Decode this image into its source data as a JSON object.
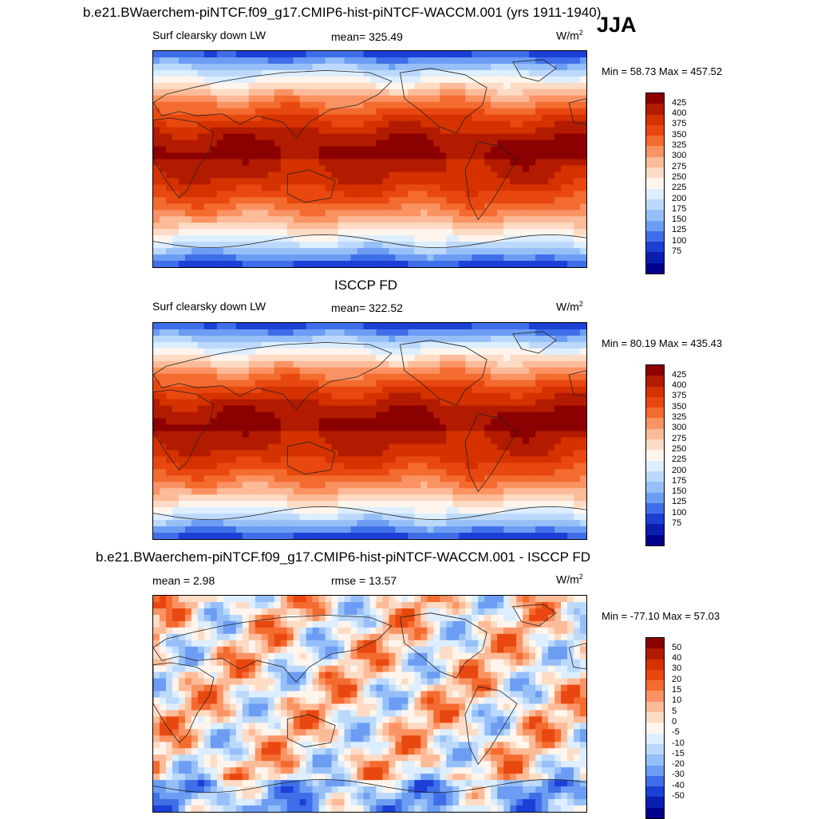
{
  "header": {
    "title": "b.e21.BWaerchem-piNTCF.f09_g17.CMIP6-hist-piNTCF-WACCM.001 (yrs 1911-1940)",
    "season": "JJA"
  },
  "units_base": "W/m",
  "units_exp": "2",
  "chart_data": [
    {
      "type": "heatmap",
      "title": "b.e21.BWaerchem-piNTCF.f09_g17.CMIP6-hist-piNTCF-WACCM.001 (yrs 1911-1940)",
      "variable": "Surf clearsky down LW",
      "stat_left": "Surf clearsky down LW",
      "stat_mid": "mean= 325.49",
      "mean": 325.49,
      "min": 58.73,
      "max": 457.52,
      "minmax_text": "Min =  58.73 Max = 457.52",
      "levels": [
        "425",
        "400",
        "375",
        "350",
        "325",
        "300",
        "275",
        "250",
        "225",
        "200",
        "175",
        "150",
        "125",
        "100",
        "75"
      ],
      "colors": [
        "#8b0000",
        "#b31b00",
        "#d53200",
        "#e8480f",
        "#f46b2f",
        "#fa9363",
        "#fcbb98",
        "#fddbc5",
        "#fff5ec",
        "#dceeff",
        "#bcd9fb",
        "#96bff8",
        "#6c9df3",
        "#3f6fe8",
        "#1c3fd6",
        "#0a1fb0",
        "#00008b"
      ]
    },
    {
      "type": "heatmap",
      "title": "ISCCP FD",
      "variable": "Surf clearsky down LW",
      "stat_left": "Surf clearsky down LW",
      "stat_mid": "mean= 322.52",
      "mean": 322.52,
      "min": 80.19,
      "max": 435.43,
      "minmax_text": "Min =  80.19 Max = 435.43",
      "levels": [
        "425",
        "400",
        "375",
        "350",
        "325",
        "300",
        "275",
        "250",
        "225",
        "200",
        "175",
        "150",
        "125",
        "100",
        "75"
      ],
      "colors": [
        "#8b0000",
        "#b31b00",
        "#d53200",
        "#e8480f",
        "#f46b2f",
        "#fa9363",
        "#fcbb98",
        "#fddbc5",
        "#fff5ec",
        "#dceeff",
        "#bcd9fb",
        "#96bff8",
        "#6c9df3",
        "#3f6fe8",
        "#1c3fd6",
        "#0a1fb0",
        "#00008b"
      ]
    },
    {
      "type": "heatmap",
      "title": "b.e21.BWaerchem-piNTCF.f09_g17.CMIP6-hist-piNTCF-WACCM.001 - ISCCP FD",
      "stat_left": "mean =   2.98",
      "stat_mid": "rmse =  13.57",
      "mean": 2.98,
      "rmse": 13.57,
      "min": -77.1,
      "max": 57.03,
      "minmax_text": "Min = -77.10 Max =  57.03",
      "levels": [
        "50",
        "40",
        "30",
        "20",
        "15",
        "10",
        "5",
        "0",
        "-5",
        "-10",
        "-15",
        "-20",
        "-30",
        "-40",
        "-50"
      ],
      "colors": [
        "#8b0000",
        "#b31b00",
        "#d53200",
        "#e8480f",
        "#f46b2f",
        "#fa9363",
        "#fcbb98",
        "#fddbc5",
        "#fff5ec",
        "#dceeff",
        "#bcd9fb",
        "#96bff8",
        "#6c9df3",
        "#3f6fe8",
        "#1c3fd6",
        "#0a1fb0",
        "#00008b"
      ]
    }
  ]
}
